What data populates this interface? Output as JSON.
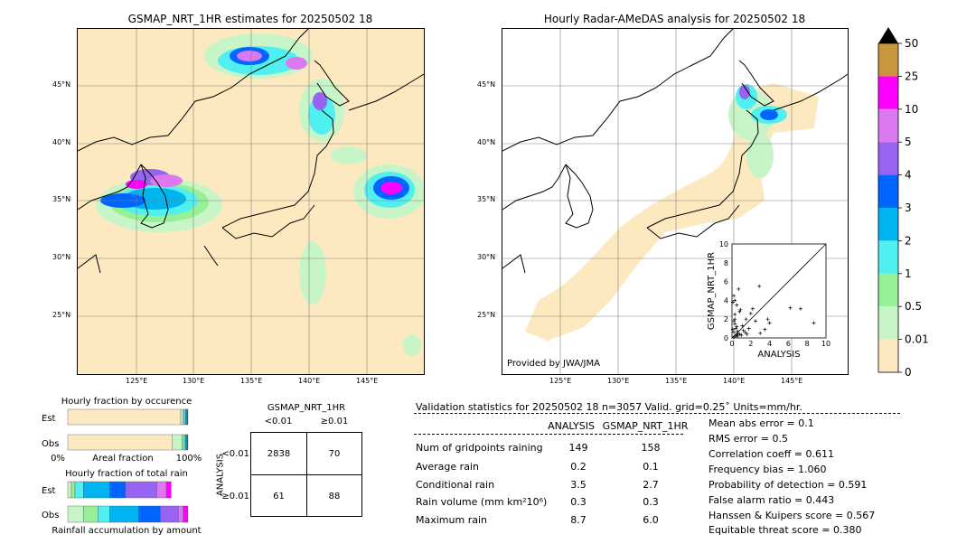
{
  "left_map": {
    "title": "GSMAP_NRT_1HR estimates for 20250502 18",
    "lat_labels": [
      "45°N",
      "40°N",
      "35°N",
      "30°N",
      "25°N"
    ],
    "lon_labels": [
      "125°E",
      "130°E",
      "135°E",
      "140°E",
      "145°E"
    ]
  },
  "right_map": {
    "title": "Hourly Radar-AMeDAS analysis for 20250502 18",
    "lat_labels": [
      "45°N",
      "40°N",
      "35°N",
      "30°N",
      "25°N"
    ],
    "lon_labels": [
      "125°E",
      "130°E",
      "135°E",
      "140°E",
      "145°E"
    ],
    "provided_by": "Provided by JWA/JMA"
  },
  "colorbar": {
    "levels": [
      "50",
      "25",
      "10",
      "5",
      "4",
      "3",
      "2",
      "1",
      "0.5",
      "0.01",
      "0"
    ],
    "colors": [
      "#c8963c",
      "#ff00ff",
      "#dc78f0",
      "#9664f0",
      "#0064ff",
      "#00b4f0",
      "#50f0f0",
      "#96f096",
      "#c8f5c8",
      "#fde9c0"
    ]
  },
  "chart_data": [
    {
      "type": "scatter",
      "xlabel": "ANALYSIS",
      "ylabel": "GSMAP_NRT_1HR",
      "xlim": [
        0,
        10
      ],
      "ylim": [
        0,
        10
      ],
      "xticks": [
        "0",
        "2",
        "4",
        "6",
        "8",
        "10"
      ],
      "yticks": [
        "0",
        "2",
        "4",
        "6",
        "8",
        "10"
      ],
      "x": [
        0.1,
        0.2,
        0.3,
        0.4,
        0.5,
        0.6,
        0.8,
        1.0,
        0.2,
        0.5,
        0.7,
        1.2,
        1.5,
        0.3,
        0.9,
        1.8,
        2.0,
        2.5,
        3.0,
        3.5,
        4.0,
        2.2,
        1.6,
        0.4,
        0.6,
        1.1,
        0.2,
        0.3,
        0.5,
        8.7,
        7.3,
        6.2,
        3.8,
        2.9,
        1.4,
        0.8,
        0.3,
        0.1,
        0.2,
        0.6
      ],
      "y": [
        3.8,
        4.5,
        2.5,
        1.0,
        3.5,
        0.5,
        2.8,
        0.3,
        0.6,
        1.2,
        5.2,
        0.8,
        2.0,
        1.5,
        3.0,
        1.0,
        2.6,
        1.8,
        0.5,
        0.9,
        1.6,
        3.1,
        0.4,
        0.2,
        0.7,
        1.3,
        0.1,
        2.0,
        0.3,
        1.6,
        3.1,
        3.2,
        2.0,
        5.5,
        0.6,
        0.4,
        4.0,
        0.9,
        1.8,
        0.2
      ]
    },
    {
      "type": "bar",
      "title": "Hourly fraction by occurence",
      "categories": [
        "Est",
        "Obs"
      ],
      "series": [
        {
          "name": "0",
          "values": [
            0.94,
            0.87
          ]
        },
        {
          "name": "0.01",
          "values": [
            0.02,
            0.08
          ]
        },
        {
          "name": "0.5",
          "values": [
            0.01,
            0.02
          ]
        },
        {
          "name": "1",
          "values": [
            0.01,
            0.01
          ]
        },
        {
          "name": "2",
          "values": [
            0.01,
            0.01
          ]
        },
        {
          "name": "3",
          "values": [
            0.01,
            0.01
          ]
        }
      ],
      "xlabel": "Areal fraction",
      "xlim_labels": [
        "0%",
        "100%"
      ]
    },
    {
      "type": "bar",
      "title": "Hourly fraction of total rain",
      "categories": [
        "Est",
        "Obs"
      ],
      "series": [
        {
          "name": "0.01",
          "values": [
            0.03,
            0.13
          ]
        },
        {
          "name": "0.5",
          "values": [
            0.03,
            0.12
          ]
        },
        {
          "name": "1",
          "values": [
            0.07,
            0.1
          ]
        },
        {
          "name": "2",
          "values": [
            0.22,
            0.24
          ]
        },
        {
          "name": "3",
          "values": [
            0.13,
            0.18
          ]
        },
        {
          "name": "4",
          "values": [
            0.26,
            0.15
          ]
        },
        {
          "name": "5",
          "values": [
            0.08,
            0.04
          ]
        },
        {
          "name": "10",
          "values": [
            0.04,
            0.04
          ]
        }
      ],
      "xlabel": "Rainfall accumulation by amount"
    },
    {
      "type": "table",
      "title": "GSMAP_NRT_1HR",
      "col_labels": [
        "<0.01",
        "≥0.01"
      ],
      "row_labels": [
        "<0.01",
        "≥0.01"
      ],
      "row_axis_label": "ANALYSIS",
      "cells": [
        [
          "2838",
          "70"
        ],
        [
          "61",
          "88"
        ]
      ]
    }
  ],
  "validation": {
    "header": "Validation statistics for 20250502 18  n=3057 Valid. grid=0.25˚ Units=mm/hr.",
    "col_analysis": "ANALYSIS",
    "col_gsmap": "GSMAP_NRT_1HR",
    "rows": [
      {
        "label": "Num of gridpoints raining",
        "analysis": "149",
        "gsmap": "158"
      },
      {
        "label": "Average rain",
        "analysis": "0.2",
        "gsmap": "0.1"
      },
      {
        "label": "Conditional rain",
        "analysis": "3.5",
        "gsmap": "2.7"
      },
      {
        "label": "Rain volume (mm km²10⁶)",
        "analysis": "0.3",
        "gsmap": "0.3"
      },
      {
        "label": "Maximum rain",
        "analysis": "8.7",
        "gsmap": "6.0"
      }
    ],
    "scores": [
      "Mean abs error =    0.1",
      "RMS error =    0.5",
      "Correlation coeff =  0.611",
      "Frequency bias =  1.060",
      "Probability of detection =  0.591",
      "False alarm ratio =  0.443",
      "Hanssen & Kuipers score =  0.567",
      "Equitable threat score =  0.380"
    ]
  }
}
